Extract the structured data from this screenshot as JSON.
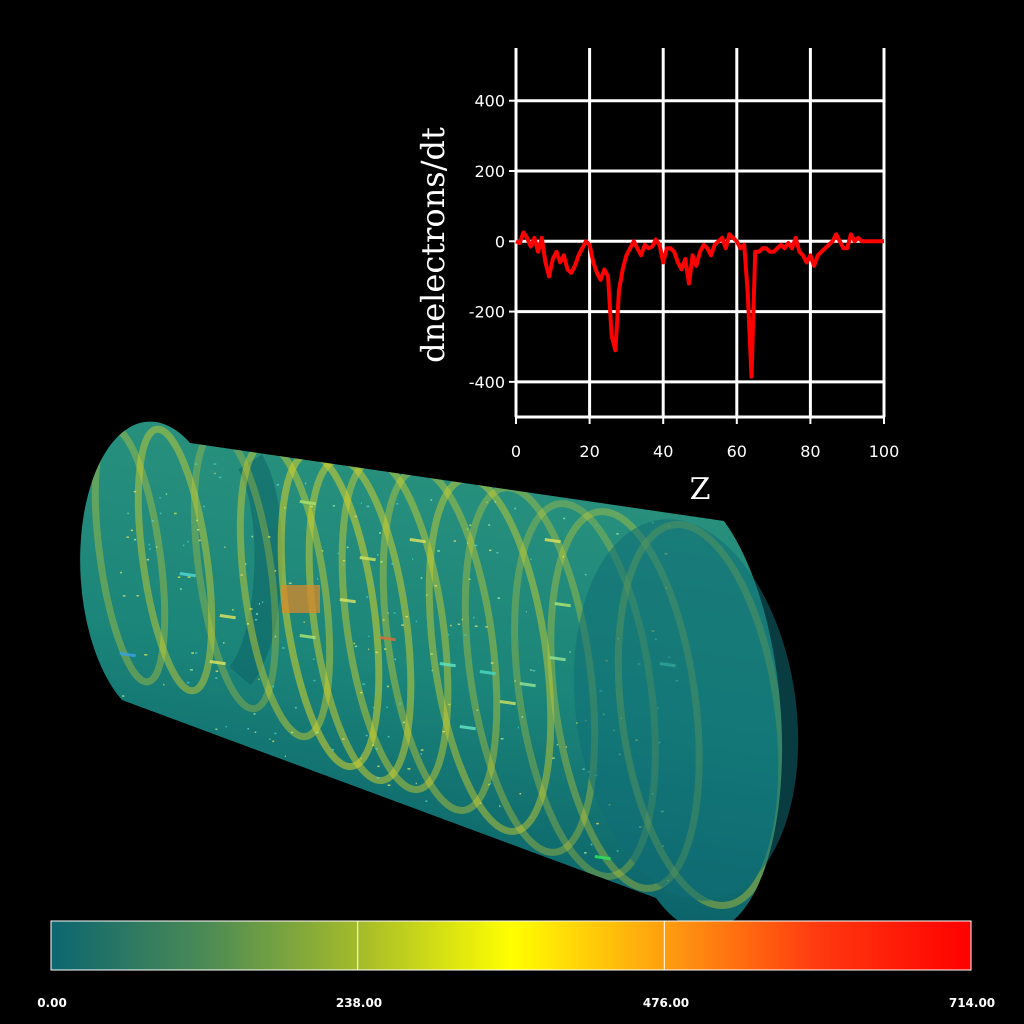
{
  "chart_data": {
    "type": "line",
    "xlabel": "Z",
    "ylabel": "dnelectrons/dt",
    "xlim": [
      0,
      100
    ],
    "ylim": [
      -500,
      550
    ],
    "x_ticks": [
      "0",
      "20",
      "40",
      "60",
      "80",
      "100"
    ],
    "y_ticks": [
      "400",
      "200",
      "0",
      "-200",
      "-400"
    ],
    "grid": true,
    "line_color": "#ff0000",
    "series": [
      {
        "x": [
          0,
          1,
          2,
          3,
          4,
          5,
          6,
          7,
          8,
          9,
          10,
          11,
          12,
          13,
          14,
          15,
          16,
          17,
          18,
          19,
          20,
          21,
          22,
          23,
          24,
          25,
          26,
          27,
          28,
          29,
          30,
          31,
          32,
          33,
          34,
          35,
          36,
          37,
          38,
          39,
          40,
          41,
          42,
          43,
          44,
          45,
          46,
          47,
          48,
          49,
          50,
          51,
          52,
          53,
          54,
          55,
          56,
          57,
          58,
          59,
          60,
          61,
          62,
          63,
          64,
          65,
          66,
          67,
          68,
          69,
          70,
          71,
          72,
          73,
          74,
          75,
          76,
          77,
          78,
          79,
          80,
          81,
          82,
          83,
          84,
          85,
          86,
          87,
          88,
          89,
          90,
          91,
          92,
          93,
          94,
          95,
          96,
          97,
          98,
          99,
          100
        ],
        "y": [
          0,
          -5,
          25,
          10,
          -15,
          10,
          -30,
          10,
          -60,
          -100,
          -50,
          -30,
          -60,
          -40,
          -80,
          -90,
          -70,
          -40,
          -20,
          0,
          -10,
          -60,
          -90,
          -110,
          -80,
          -100,
          -270,
          -310,
          -140,
          -80,
          -40,
          -20,
          0,
          -20,
          -40,
          -10,
          -20,
          -15,
          5,
          -10,
          -60,
          -20,
          -20,
          -30,
          -60,
          -80,
          -50,
          -120,
          -40,
          -70,
          -30,
          -10,
          -20,
          -40,
          -10,
          0,
          10,
          -20,
          20,
          10,
          0,
          -20,
          -10,
          -150,
          -385,
          -30,
          -30,
          -20,
          -20,
          -30,
          -30,
          -20,
          -10,
          -20,
          -5,
          -20,
          10,
          -30,
          -40,
          -60,
          -40,
          -70,
          -40,
          -30,
          -20,
          -10,
          0,
          20,
          0,
          -20,
          -20,
          20,
          0,
          10,
          0,
          0,
          0,
          0,
          0,
          0,
          0
        ]
      }
    ]
  },
  "colorbar": {
    "tick_labels": [
      "0.00",
      "238.00",
      "476.00",
      "714.00"
    ],
    "range": [
      0,
      714
    ],
    "stops": [
      "#0c6670",
      "#4b8a55",
      "#a3ba2b",
      "#ffff00",
      "#ff9e10",
      "#ff3a10",
      "#ff0000"
    ]
  },
  "scene": {
    "tube_color": "#1e8f84",
    "ring_color": "#d6d22a"
  }
}
